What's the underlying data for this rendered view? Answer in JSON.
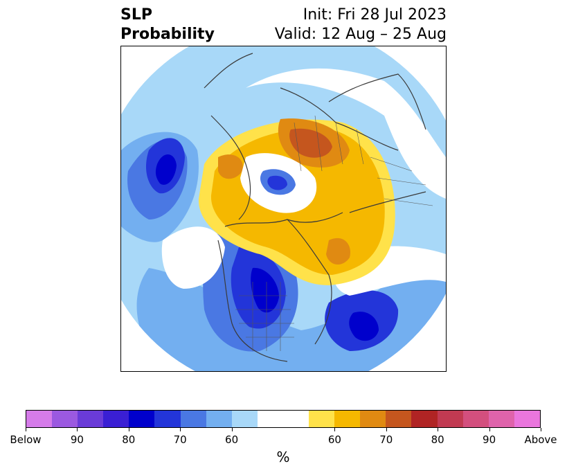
{
  "title": {
    "variable": "SLP",
    "kind": "Probability",
    "init": "Init: Fri 28 Jul 2023",
    "valid": "Valid: 12 Aug – 25 Aug"
  },
  "colorbar": {
    "unit": "%",
    "colors": [
      "#d57be9",
      "#9b59e0",
      "#6a3bd8",
      "#3a1fd4",
      "#0000cc",
      "#2335d9",
      "#4a78e3",
      "#73aff0",
      "#a8d8f8",
      "#ffffff",
      "#ffffff",
      "#ffe24a",
      "#f5b800",
      "#e08a12",
      "#c5561e",
      "#b02424",
      "#c13a52",
      "#d34f7e",
      "#df63ab",
      "#ea76dd"
    ],
    "ticks": [
      "Below",
      "90",
      "80",
      "70",
      "60",
      "60",
      "70",
      "80",
      "90",
      "Above"
    ]
  },
  "map": {
    "projection": "north-polar-stereographic",
    "palette": {
      "blue_light": "#a8d8f8",
      "blue_mid": "#73aff0",
      "blue": "#4a78e3",
      "blue_deep": "#2335d9",
      "blue_darkest": "#0000cc",
      "yellow": "#ffe24a",
      "gold": "#f5b800",
      "orange": "#e08a12",
      "rust": "#c5561e",
      "coast": "#3a3a3a"
    }
  }
}
